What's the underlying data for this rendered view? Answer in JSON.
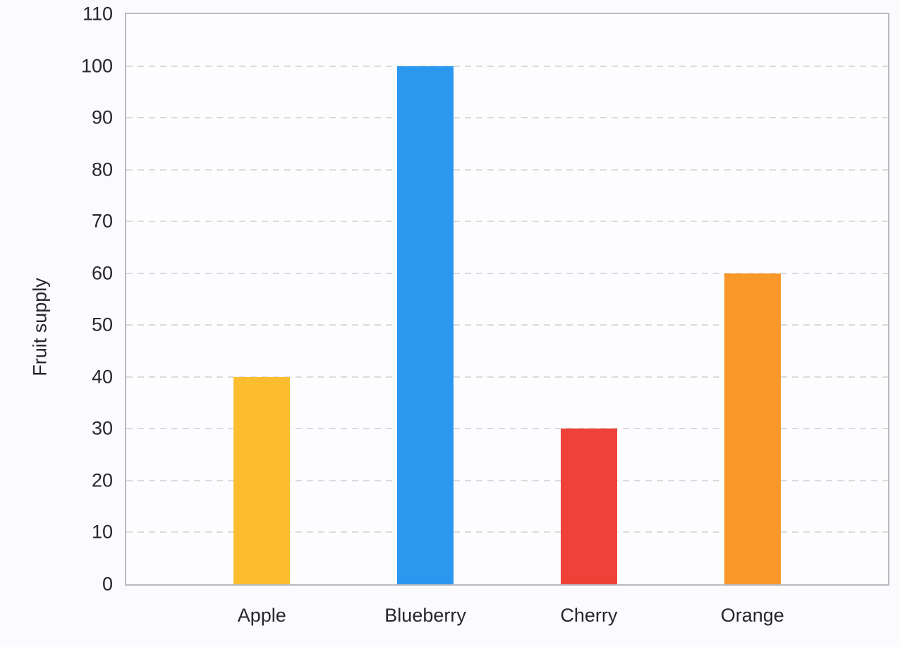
{
  "chart_data": {
    "type": "bar",
    "categories": [
      "Apple",
      "Blueberry",
      "Cherry",
      "Orange"
    ],
    "values": [
      40,
      100,
      30,
      60
    ],
    "bar_colors": [
      "#fcbd2e",
      "#2b97ee",
      "#ee4238",
      "#fa9729"
    ],
    "ylabel": "Fruit supply",
    "ylim": [
      0,
      110
    ],
    "yticks": [
      0,
      10,
      20,
      30,
      40,
      50,
      60,
      70,
      80,
      90,
      100,
      110
    ],
    "grid": "horizontal-dashed",
    "legend": "none"
  },
  "colors": {
    "background": "#fbfbfe",
    "plot_background": "#fdfdff",
    "plot_border": "#b9b9c0",
    "gridline": "#dbdbdb",
    "text": "#26262b"
  }
}
